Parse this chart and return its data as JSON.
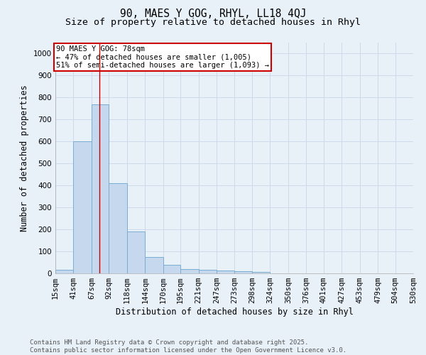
{
  "title": "90, MAES Y GOG, RHYL, LL18 4QJ",
  "subtitle": "Size of property relative to detached houses in Rhyl",
  "xlabel": "Distribution of detached houses by size in Rhyl",
  "ylabel": "Number of detached properties",
  "bar_values": [
    15,
    600,
    770,
    410,
    192,
    75,
    38,
    18,
    15,
    12,
    10,
    7,
    0,
    0,
    0,
    0,
    0,
    0,
    0,
    0
  ],
  "bin_edges": [
    15,
    41,
    67,
    92,
    118,
    144,
    170,
    195,
    221,
    247,
    273,
    298,
    324,
    350,
    376,
    401,
    427,
    453,
    479,
    504,
    530
  ],
  "tick_labels": [
    "15sqm",
    "41sqm",
    "67sqm",
    "92sqm",
    "118sqm",
    "144sqm",
    "170sqm",
    "195sqm",
    "221sqm",
    "247sqm",
    "273sqm",
    "298sqm",
    "324sqm",
    "350sqm",
    "376sqm",
    "401sqm",
    "427sqm",
    "453sqm",
    "479sqm",
    "504sqm",
    "530sqm"
  ],
  "bar_color": "#c5d8ee",
  "bar_edge_color": "#7aadd4",
  "grid_color": "#ccdaeb",
  "background_color": "#e8f0f8",
  "red_line_x": 78,
  "ylim": [
    0,
    1050
  ],
  "yticks": [
    0,
    100,
    200,
    300,
    400,
    500,
    600,
    700,
    800,
    900,
    1000
  ],
  "annotation_title": "90 MAES Y GOG: 78sqm",
  "annotation_line1": "← 47% of detached houses are smaller (1,005)",
  "annotation_line2": "51% of semi-detached houses are larger (1,093) →",
  "annotation_box_color": "#ffffff",
  "annotation_box_edge_color": "#cc0000",
  "footnote_line1": "Contains HM Land Registry data © Crown copyright and database right 2025.",
  "footnote_line2": "Contains public sector information licensed under the Open Government Licence v3.0.",
  "title_fontsize": 10.5,
  "subtitle_fontsize": 9.5,
  "axis_label_fontsize": 8.5,
  "tick_fontsize": 7.5,
  "annotation_fontsize": 7.5,
  "footnote_fontsize": 6.5
}
